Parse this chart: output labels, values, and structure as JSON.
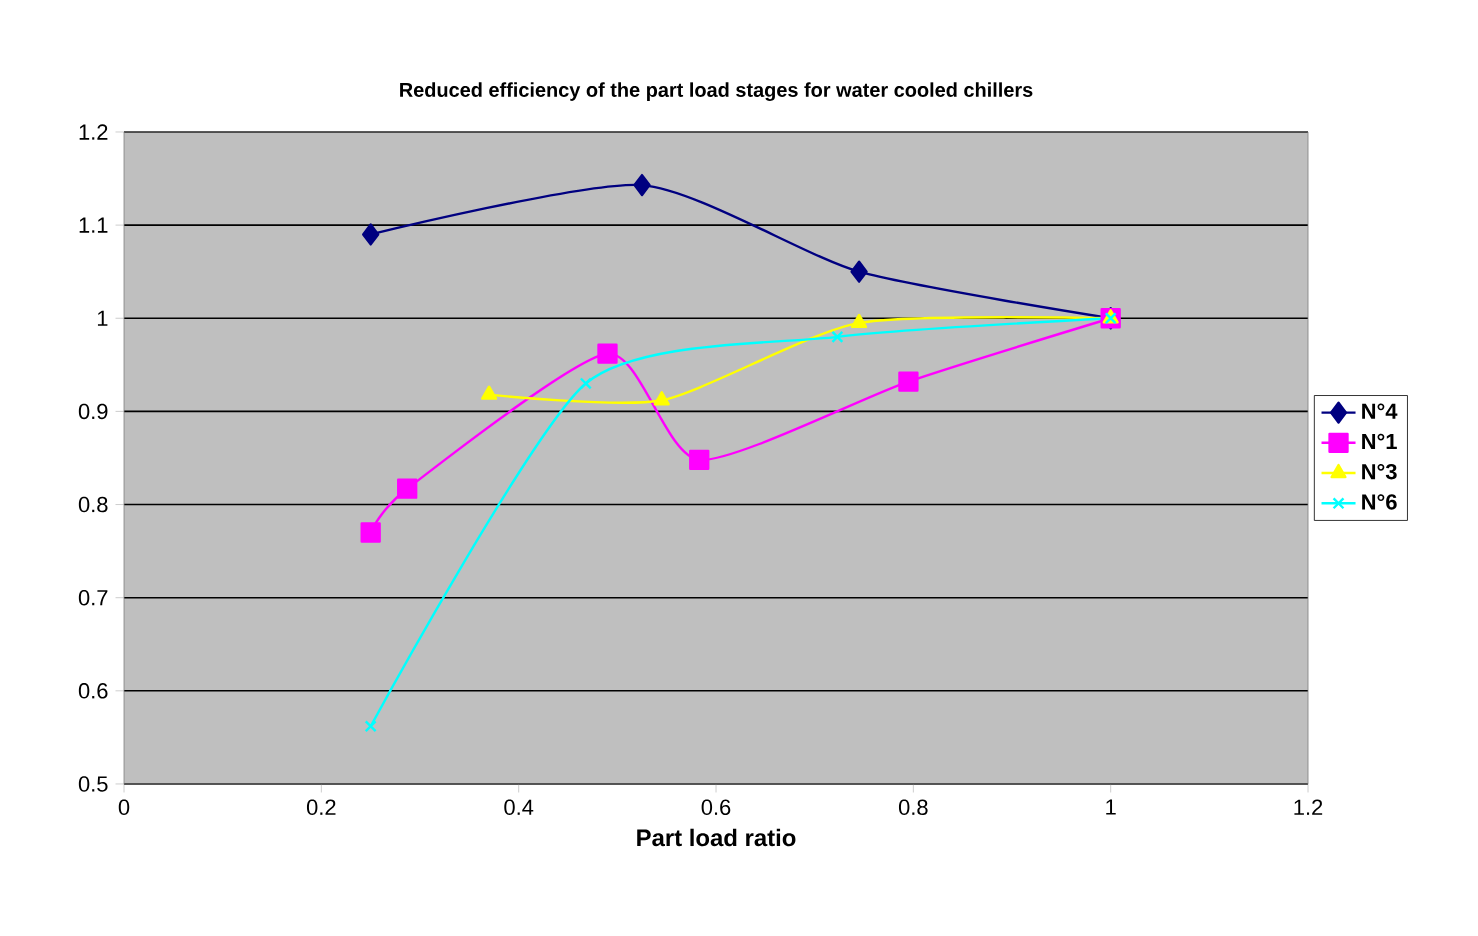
{
  "chart_data": {
    "type": "line",
    "title": "Reduced efficiency of the part load stages for water cooled chillers",
    "xlabel": "Part load ratio",
    "xlim": [
      0,
      1.2
    ],
    "xticks": [
      0,
      0.2,
      0.4,
      0.6,
      0.8,
      1,
      1.2
    ],
    "ylim": [
      0.5,
      1.2
    ],
    "yticks": [
      0.5,
      0.6,
      0.7,
      0.8,
      0.9,
      1,
      1.1,
      1.2
    ],
    "grid": "y",
    "legend": "right",
    "series": [
      {
        "name": "N°4",
        "color": "#000080",
        "marker": "diamond",
        "x": [
          0.25,
          0.525,
          0.745,
          1
        ],
        "values": [
          1.09,
          1.143,
          1.05,
          1.0
        ]
      },
      {
        "name": "N°1",
        "color": "#ff00ff",
        "marker": "square",
        "x": [
          0.25,
          0.287,
          0.49,
          0.583,
          0.795,
          1
        ],
        "values": [
          0.77,
          0.817,
          0.962,
          0.848,
          0.932,
          1.0
        ]
      },
      {
        "name": "N°3",
        "color": "#ffff00",
        "marker": "triangle",
        "x": [
          0.37,
          0.545,
          0.745,
          1
        ],
        "values": [
          0.918,
          0.912,
          0.995,
          1.0
        ]
      },
      {
        "name": "N°6",
        "color": "#00ffff",
        "marker": "cross",
        "x": [
          0.25,
          0.468,
          0.723,
          1
        ],
        "values": [
          0.562,
          0.93,
          0.98,
          1.0
        ]
      }
    ]
  }
}
